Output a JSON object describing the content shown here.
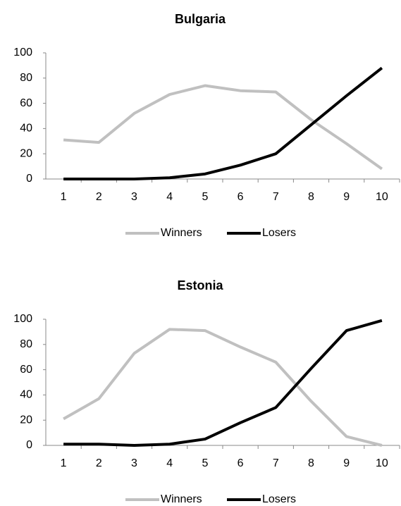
{
  "chart_data": [
    {
      "type": "line",
      "title": "Bulgaria",
      "categories": [
        "1",
        "2",
        "3",
        "4",
        "5",
        "6",
        "7",
        "8",
        "9",
        "10"
      ],
      "series": [
        {
          "name": "Winners",
          "color": "#c0c0c0",
          "values": [
            31,
            29,
            52,
            67,
            74,
            70,
            69,
            47,
            28,
            8
          ]
        },
        {
          "name": "Losers",
          "color": "#000000",
          "values": [
            0,
            0,
            0,
            1,
            4,
            11,
            20,
            43,
            66,
            88
          ]
        }
      ],
      "ylim": [
        0,
        100
      ],
      "yticks": [
        0,
        20,
        40,
        60,
        80,
        100
      ],
      "grid": false,
      "legend": "bottom"
    },
    {
      "type": "line",
      "title": "Estonia",
      "categories": [
        "1",
        "2",
        "3",
        "4",
        "5",
        "6",
        "7",
        "8",
        "9",
        "10"
      ],
      "series": [
        {
          "name": "Winners",
          "color": "#c0c0c0",
          "values": [
            21,
            37,
            73,
            92,
            91,
            78,
            66,
            35,
            7,
            0
          ]
        },
        {
          "name": "Losers",
          "color": "#000000",
          "values": [
            1,
            1,
            0,
            1,
            5,
            18,
            30,
            61,
            91,
            99
          ]
        }
      ],
      "ylim": [
        0,
        100
      ],
      "yticks": [
        0,
        20,
        40,
        60,
        80,
        100
      ],
      "grid": false,
      "legend": "bottom"
    }
  ]
}
